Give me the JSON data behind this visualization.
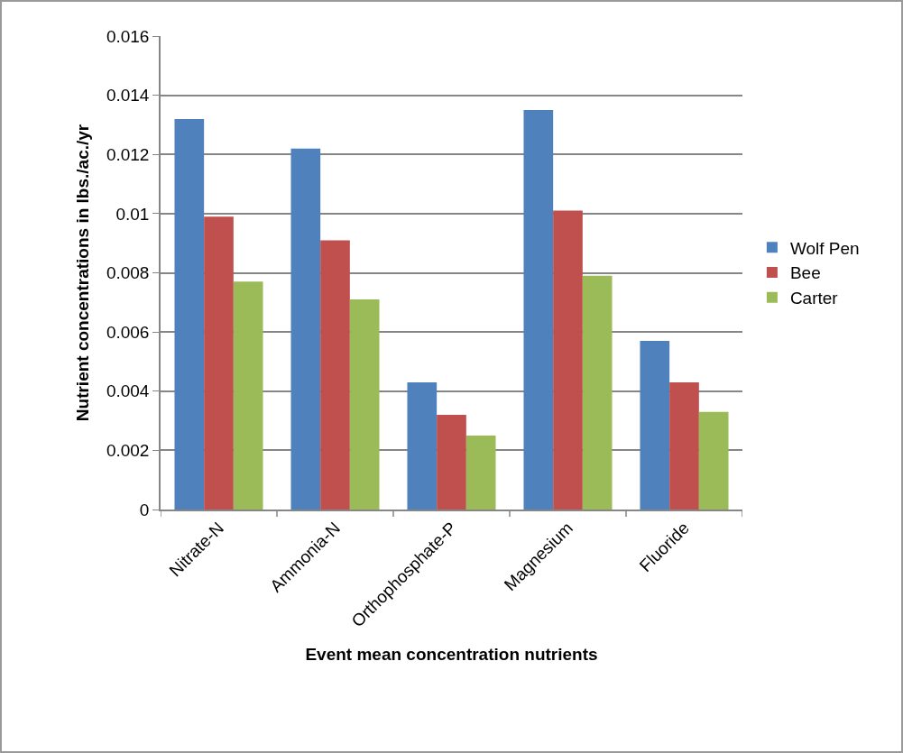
{
  "chart_data": {
    "type": "bar",
    "xlabel": "Event mean concentration nutrients",
    "ylabel": "Nutrient concentrations in lbs./ac./yr",
    "categories": [
      "Nitrate-N",
      "Ammonia-N",
      "Orthophosphate-P",
      "Magnesium",
      "Fluoride"
    ],
    "series": [
      {
        "name": "Wolf Pen",
        "color": "#4f81bd",
        "values": [
          0.0132,
          0.0122,
          0.0043,
          0.0135,
          0.0057
        ]
      },
      {
        "name": "Bee",
        "color": "#c0504d",
        "values": [
          0.0099,
          0.0091,
          0.0032,
          0.0101,
          0.0043
        ]
      },
      {
        "name": "Carter",
        "color": "#9bbb59",
        "values": [
          0.0077,
          0.0071,
          0.0025,
          0.0079,
          0.0033
        ]
      }
    ],
    "ylim": [
      0,
      0.016
    ],
    "yticks": [
      0,
      0.002,
      0.004,
      0.006,
      0.008,
      0.01,
      0.012,
      0.014,
      0.016
    ],
    "grid": "y",
    "legend": "right"
  }
}
